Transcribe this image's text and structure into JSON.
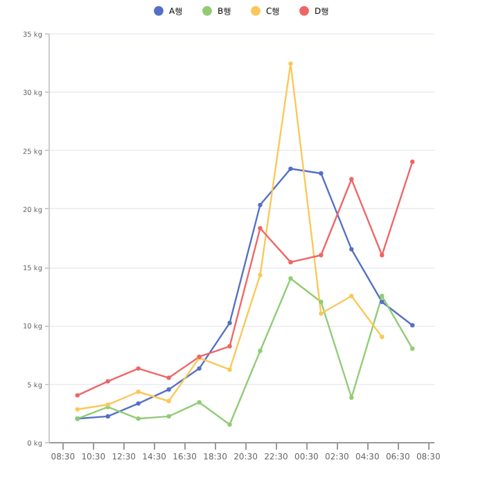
{
  "chart_data": {
    "type": "line",
    "x": [
      "--01-01T09:30",
      "--01-01T11:30",
      "--01-01T13:30",
      "--01-01T15:30",
      "--01-01T17:30",
      "--01-01T19:30",
      "--01-01T21:30",
      "--01-01T23:30",
      "--01-02T01:30",
      "--01-02T03:30",
      "--01-02T05:30",
      "--01-02T07:30"
    ],
    "series": [
      {
        "name": "A행",
        "color": "#5470c6",
        "values": [
          2.0,
          2.2,
          3.3,
          4.5,
          6.3,
          10.2,
          20.3,
          23.4,
          23.0,
          16.5,
          12.0,
          10.0
        ]
      },
      {
        "name": "B행",
        "color": "#91cc75",
        "values": [
          2.0,
          3.0,
          2.0,
          2.2,
          3.4,
          1.5,
          7.8,
          14.0,
          12.0,
          3.8,
          12.5,
          8.0
        ]
      },
      {
        "name": "C행",
        "color": "#fac858",
        "values": [
          2.8,
          3.2,
          4.3,
          3.5,
          7.2,
          6.2,
          14.3,
          32.4,
          11.0,
          12.5,
          9.0,
          null
        ]
      },
      {
        "name": "D행",
        "color": "#ee6666",
        "values": [
          4.0,
          5.2,
          6.3,
          5.5,
          7.3,
          8.2,
          18.3,
          15.4,
          16.0,
          22.5,
          16.0,
          24.0
        ]
      }
    ],
    "xlim": [
      "--01-01T07:36",
      "--01-02T08:54"
    ],
    "xticks": [
      {
        "value": "--01-01T08:30",
        "label": "08:30"
      },
      {
        "value": "--01-01T10:30",
        "label": "10:30"
      },
      {
        "value": "--01-01T12:30",
        "label": "12:30"
      },
      {
        "value": "--01-01T14:30",
        "label": "14:30"
      },
      {
        "value": "--01-01T16:30",
        "label": "16:30"
      },
      {
        "value": "--01-01T18:30",
        "label": "18:30"
      },
      {
        "value": "--01-01T20:30",
        "label": "20:30"
      },
      {
        "value": "--01-01T22:30",
        "label": "22:30"
      },
      {
        "value": "--01-02T00:30",
        "label": "00:30"
      },
      {
        "value": "--01-02T02:30",
        "label": "02:30"
      },
      {
        "value": "--01-02T04:30",
        "label": "04:30"
      },
      {
        "value": "--01-02T06:30",
        "label": "06:30"
      },
      {
        "value": "--01-02T08:30",
        "label": "08:30"
      }
    ],
    "ylim": [
      0,
      35
    ],
    "yticks": [
      {
        "value": 0,
        "label": "0 kg"
      },
      {
        "value": 5,
        "label": "5 kg"
      },
      {
        "value": 10,
        "label": "10 kg"
      },
      {
        "value": 15,
        "label": "15 kg"
      },
      {
        "value": 20,
        "label": "20 kg"
      },
      {
        "value": 25,
        "label": "25 kg"
      },
      {
        "value": 30,
        "label": "30 kg"
      },
      {
        "value": 35,
        "label": "35 kg"
      }
    ],
    "grid": "y",
    "legend": "top",
    "marker": "circle",
    "line_style": "solid"
  }
}
